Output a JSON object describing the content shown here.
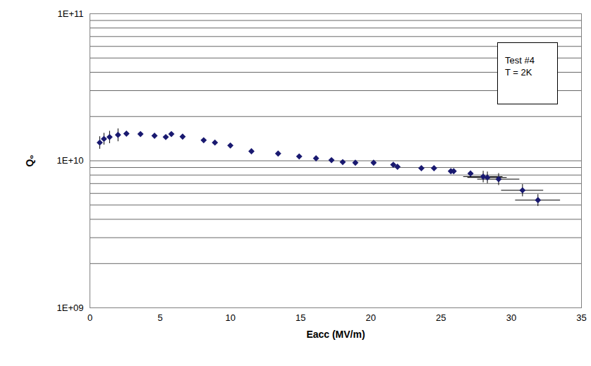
{
  "chart_data": {
    "type": "scatter",
    "x_label": "Eacc (MV/m)",
    "y_label": "Q₀",
    "annotation": [
      "Test #4",
      "T = 2K"
    ],
    "log": "y",
    "grid": true,
    "marker": "diamond",
    "color": "#191970",
    "xlim": [
      0,
      35
    ],
    "xticks": [
      0,
      5,
      10,
      15,
      20,
      25,
      30,
      35
    ],
    "ylim": [
      1000000000,
      100000000000
    ],
    "yticks": [
      {
        "value": 1000000000,
        "label": "1E+09"
      },
      {
        "value": 10000000000,
        "label": "1E+10"
      },
      {
        "value": 100000000000,
        "label": "1E+11"
      }
    ],
    "x": [
      0.7,
      1.0,
      1.4,
      2.0,
      2.6,
      3.6,
      4.6,
      5.4,
      5.8,
      6.6,
      8.1,
      8.9,
      10.0,
      11.5,
      13.4,
      14.9,
      16.1,
      17.2,
      18.0,
      18.9,
      20.2,
      21.6,
      21.9,
      23.6,
      24.5,
      25.7,
      25.9,
      27.1,
      28.0,
      28.3,
      29.1,
      30.8,
      31.9
    ],
    "values": [
      13300000000,
      14100000000,
      14500000000,
      15000000000,
      15300000000,
      15200000000,
      14800000000,
      14500000000,
      15200000000,
      14600000000,
      13800000000,
      13300000000,
      12700000000,
      11600000000,
      11200000000,
      10700000000,
      10400000000,
      10100000000,
      9800000000,
      9700000000,
      9700000000,
      9400000000,
      9100000000,
      8900000000,
      8900000000,
      8500000000,
      8500000000,
      8200000000,
      7800000000,
      7700000000,
      7500000000,
      6300000000,
      5400000000
    ],
    "y_error": [
      1300000000,
      1300000000,
      1400000000,
      1500000000,
      null,
      null,
      null,
      null,
      null,
      null,
      null,
      null,
      null,
      null,
      null,
      null,
      null,
      null,
      null,
      null,
      null,
      null,
      null,
      null,
      null,
      null,
      null,
      null,
      700000000,
      700000000,
      700000000,
      600000000,
      500000000
    ],
    "x_error": [
      null,
      null,
      null,
      null,
      null,
      null,
      null,
      null,
      null,
      null,
      null,
      null,
      null,
      null,
      null,
      null,
      null,
      null,
      null,
      null,
      null,
      null,
      null,
      null,
      null,
      null,
      null,
      null,
      1.4,
      1.4,
      1.5,
      1.5,
      1.6
    ]
  }
}
